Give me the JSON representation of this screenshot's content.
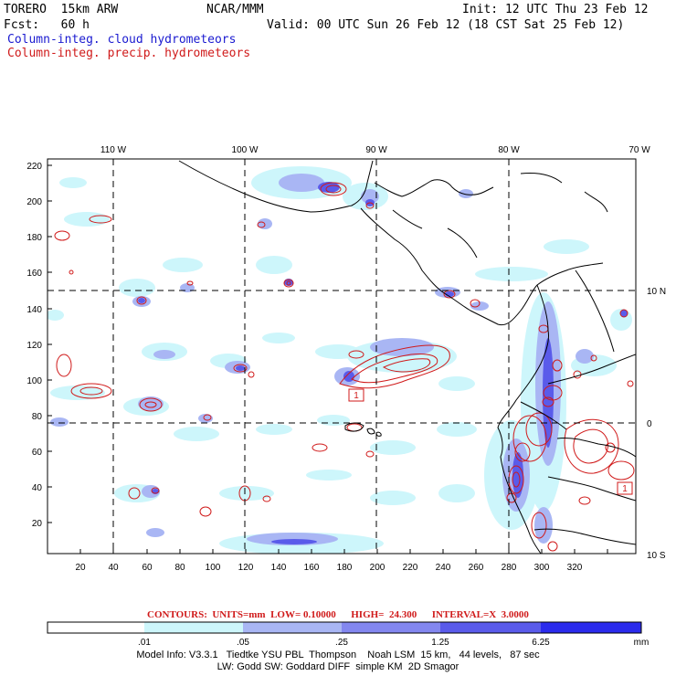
{
  "header": {
    "model": "TORERO  15km ARW",
    "org": "NCAR/MMM",
    "init": "Init: 12 UTC Thu 23 Feb 12",
    "fcst": "Fcst:   60 h",
    "valid": "Valid: 00 UTC Sun 26 Feb 12 (18 CST Sat 25 Feb 12)",
    "field1": "Column-integ. cloud hydrometeors",
    "field2": "Column-integ. precip. hydrometeors"
  },
  "map": {
    "lon_labels": [
      "110 W",
      "100 W",
      "90 W",
      "80 W",
      "70 W"
    ],
    "lat_labels": [
      "10 N",
      "0",
      "10 S"
    ],
    "y_ticks": [
      "220",
      "200",
      "180",
      "160",
      "140",
      "120",
      "100",
      "80",
      "60",
      "40",
      "20"
    ],
    "x_ticks": [
      "20",
      "40",
      "60",
      "80",
      "100",
      "120",
      "140",
      "160",
      "180",
      "200",
      "220",
      "240",
      "260",
      "280",
      "300",
      "320"
    ],
    "markers": [
      "1",
      "1"
    ]
  },
  "contours_line": "CONTOURS:  UNITS=mm  LOW= 0.10000      HIGH=  24.300      INTERVAL=X  3.0000",
  "colorbar": {
    "labels": [
      ".01",
      ".05",
      ".25",
      "1.25",
      "6.25"
    ],
    "unit": "mm",
    "colors": [
      "#ffffff",
      "#cdf6fb",
      "#a9b6f4",
      "#8387ef",
      "#5a5bea",
      "#2b2bec"
    ]
  },
  "model_info": {
    "line1": "Model Info: V3.3.1   Tiedtke YSU PBL  Thompson    Noah LSM  15 km,   44 levels,   87 sec",
    "line2": "LW: Godd SW: Goddard DIFF  simple KM  2D Smagor"
  }
}
